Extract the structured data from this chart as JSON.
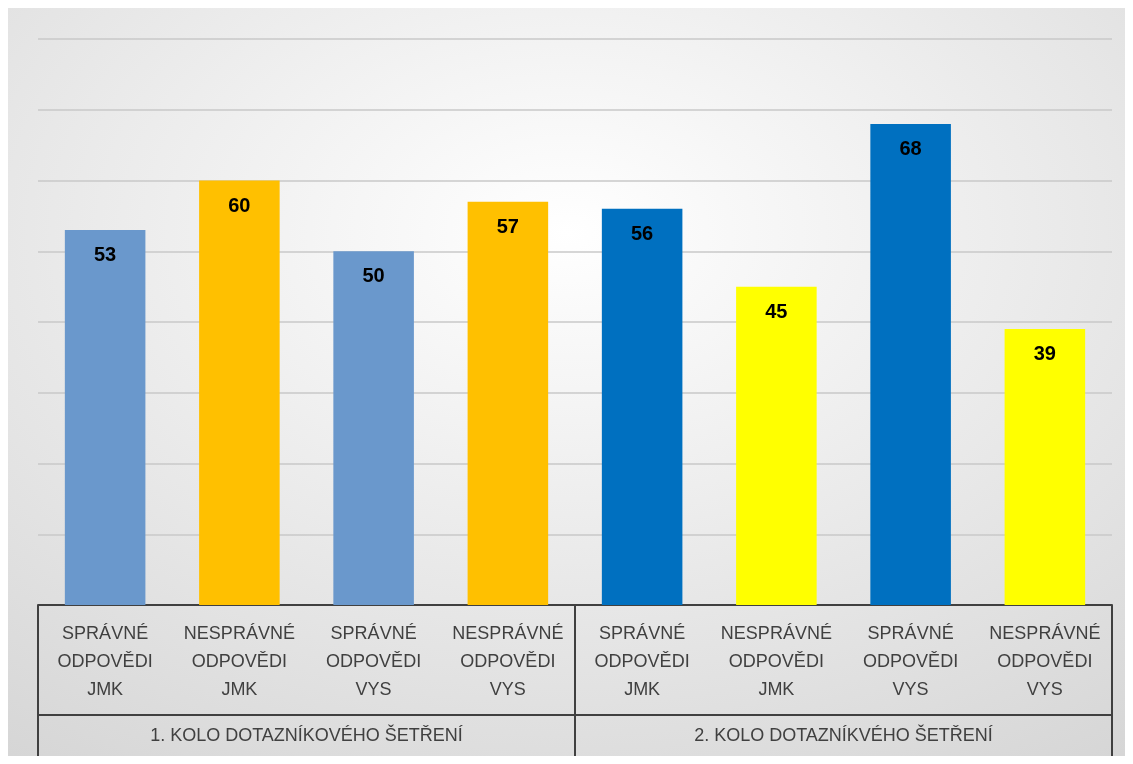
{
  "chart_data": {
    "type": "bar",
    "categories": [
      "SPRÁVNÉ ODPOVĚDI JMK",
      "NESPRÁVNÉ ODPOVĚDI JMK",
      "SPRÁVNÉ ODPOVĚDI VYS",
      "NESPRÁVNÉ ODPOVĚDI VYS",
      "SPRÁVNÉ ODPOVĚDI JMK",
      "NESPRÁVNÉ ODPOVĚDI JMK",
      "SPRÁVNÉ ODPOVĚDI VYS",
      "NESPRÁVNÉ ODPOVĚDI VYS"
    ],
    "values": [
      53,
      60,
      50,
      57,
      56,
      45,
      68,
      39
    ],
    "colors": [
      "#6a98cc",
      "#ffc000",
      "#6a98cc",
      "#ffc000",
      "#0070c0",
      "#ffff00",
      "#0070c0",
      "#ffff00"
    ],
    "data_labels": true,
    "ylim": [
      0,
      80
    ],
    "yticks": [
      {
        "value": 0,
        "label": null
      },
      {
        "value": 10,
        "label": null
      },
      {
        "value": 20,
        "label": null
      },
      {
        "value": 30,
        "label": null
      },
      {
        "value": 40,
        "label": null
      },
      {
        "value": 50,
        "label": null
      },
      {
        "value": 60,
        "label": null
      },
      {
        "value": 70,
        "label": null
      },
      {
        "value": 80,
        "label": null
      }
    ],
    "tick_labels": "x",
    "grid": "y",
    "annotations": [
      "1. KOLO DOTAZNÍKOVÉHO ŠETŘENÍ",
      "2. KOLO DOTAZNÍKVÉHO ŠETŘENÍ"
    ]
  }
}
